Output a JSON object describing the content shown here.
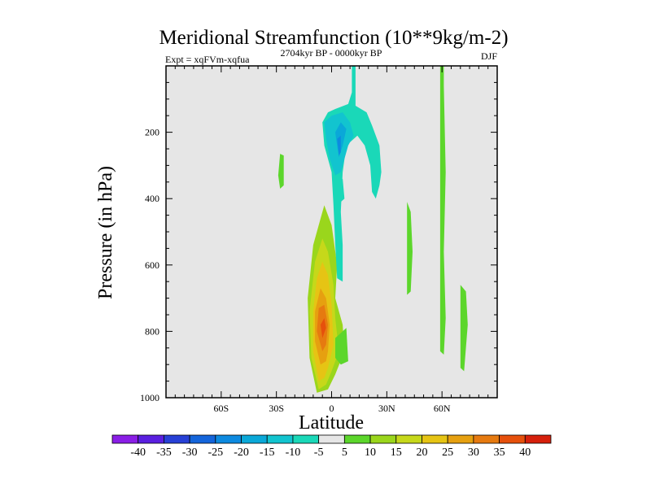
{
  "chart_data": {
    "type": "contour",
    "title": "Meridional Streamfunction (10**9kg/m-2)",
    "subtitle_left": "Expt = xqFVm-xqfua",
    "subtitle_center": "2704kyr BP - 0000kyr BP",
    "subtitle_right": "DJF",
    "xlabel": "Latitude",
    "ylabel": "Pressure (in hPa)",
    "xlim": [
      -90,
      90
    ],
    "ylim": [
      0,
      1000
    ],
    "y_inverted": true,
    "x_ticks": [
      {
        "value": -60,
        "label": "60S"
      },
      {
        "value": -30,
        "label": "30S"
      },
      {
        "value": 0,
        "label": "0"
      },
      {
        "value": 30,
        "label": "30N"
      },
      {
        "value": 60,
        "label": "60N"
      }
    ],
    "y_ticks": [
      {
        "value": 200,
        "label": "200"
      },
      {
        "value": 400,
        "label": "400"
      },
      {
        "value": 600,
        "label": "600"
      },
      {
        "value": 800,
        "label": "800"
      },
      {
        "value": 1000,
        "label": "1000"
      }
    ],
    "background_color": "#e6e6e6",
    "colorbar": {
      "levels": [
        "-40",
        "-35",
        "-30",
        "-25",
        "-20",
        "-15",
        "-10",
        "-5",
        "5",
        "10",
        "15",
        "20",
        "25",
        "30",
        "35",
        "40"
      ],
      "colors": [
        "#8a1ee6",
        "#5a1fe0",
        "#2740d6",
        "#1465db",
        "#0d8ae0",
        "#0aa8d8",
        "#12c4cf",
        "#1ad8b8",
        "#e6e6e6",
        "#5cd62b",
        "#9ad61c",
        "#c6d81a",
        "#e6c414",
        "#e6a010",
        "#e67a10",
        "#e6500c",
        "#d6200c"
      ]
    },
    "regions": [
      {
        "name": "positive-cell-10",
        "color": "#9ad61c",
        "points": [
          [
            -8,
            985
          ],
          [
            -12,
            880
          ],
          [
            -13,
            700
          ],
          [
            -10,
            540
          ],
          [
            -6,
            460
          ],
          [
            -4,
            420
          ],
          [
            0,
            480
          ],
          [
            3,
            600
          ],
          [
            2,
            700
          ],
          [
            6,
            780
          ],
          [
            7,
            860
          ],
          [
            2,
            930
          ],
          [
            -2,
            975
          ]
        ]
      },
      {
        "name": "positive-cell-15",
        "color": "#c6d81a",
        "points": [
          [
            -7,
            975
          ],
          [
            -11,
            880
          ],
          [
            -12,
            740
          ],
          [
            -9,
            590
          ],
          [
            -5,
            520
          ],
          [
            -2,
            560
          ],
          [
            1,
            660
          ],
          [
            2,
            760
          ],
          [
            4,
            860
          ],
          [
            0,
            920
          ],
          [
            -3,
            960
          ]
        ]
      },
      {
        "name": "positive-cell-20",
        "color": "#e6c414",
        "points": [
          [
            -7,
            950
          ],
          [
            -10,
            860
          ],
          [
            -10,
            740
          ],
          [
            -8,
            640
          ],
          [
            -5,
            590
          ],
          [
            -2,
            630
          ],
          [
            0,
            720
          ],
          [
            1,
            840
          ],
          [
            -2,
            910
          ],
          [
            -4,
            940
          ]
        ]
      },
      {
        "name": "positive-cell-25",
        "color": "#e6a010",
        "points": [
          [
            -6,
            900
          ],
          [
            -9,
            830
          ],
          [
            -9,
            740
          ],
          [
            -6,
            670
          ],
          [
            -3,
            700
          ],
          [
            -1,
            780
          ],
          [
            -2,
            860
          ],
          [
            -3,
            890
          ]
        ]
      },
      {
        "name": "positive-cell-30",
        "color": "#e67a10",
        "points": [
          [
            -5,
            860
          ],
          [
            -8,
            800
          ],
          [
            -7,
            730
          ],
          [
            -4,
            720
          ],
          [
            -2,
            780
          ],
          [
            -3,
            840
          ]
        ]
      },
      {
        "name": "positive-cell-35",
        "color": "#e6500c",
        "points": [
          [
            -5,
            820
          ],
          [
            -6,
            780
          ],
          [
            -4,
            760
          ],
          [
            -3,
            790
          ]
        ]
      },
      {
        "name": "positive-edge-5",
        "color": "#5cd62b",
        "points": [
          [
            2,
            820
          ],
          [
            8,
            790
          ],
          [
            9,
            890
          ],
          [
            5,
            900
          ],
          [
            2,
            880
          ]
        ]
      },
      {
        "name": "negative-cell-5",
        "color": "#1ad8b8",
        "points": [
          [
            11,
            0
          ],
          [
            13,
            0
          ],
          [
            13,
            120
          ],
          [
            19,
            140
          ],
          [
            22,
            180
          ],
          [
            26,
            240
          ],
          [
            27,
            320
          ],
          [
            26,
            360
          ],
          [
            24,
            400
          ],
          [
            22,
            380
          ],
          [
            21,
            300
          ],
          [
            18,
            240
          ],
          [
            14,
            210
          ],
          [
            8,
            240
          ],
          [
            6,
            320
          ],
          [
            5,
            440
          ],
          [
            6,
            540
          ],
          [
            6,
            650
          ],
          [
            3,
            640
          ],
          [
            2,
            540
          ],
          [
            1,
            420
          ],
          [
            0,
            320
          ],
          [
            -4,
            240
          ],
          [
            -5,
            170
          ],
          [
            -2,
            140
          ],
          [
            2,
            130
          ],
          [
            9,
            115
          ],
          [
            11,
            80
          ]
        ]
      },
      {
        "name": "negative-cell-10",
        "color": "#12c4cf",
        "points": [
          [
            -4,
            170
          ],
          [
            0,
            150
          ],
          [
            6,
            140
          ],
          [
            10,
            170
          ],
          [
            12,
            210
          ],
          [
            9,
            240
          ],
          [
            7,
            280
          ],
          [
            5,
            320
          ],
          [
            2,
            330
          ],
          [
            -1,
            280
          ],
          [
            -3,
            220
          ]
        ]
      },
      {
        "name": "negative-cell-15",
        "color": "#0aa8d8",
        "points": [
          [
            2,
            200
          ],
          [
            5,
            170
          ],
          [
            8,
            190
          ],
          [
            6,
            240
          ],
          [
            4,
            275
          ],
          [
            3,
            240
          ]
        ]
      },
      {
        "name": "negative-cell-20",
        "color": "#0d8ae0",
        "points": [
          [
            3,
            220
          ],
          [
            5,
            210
          ],
          [
            5,
            260
          ],
          [
            4,
            270
          ]
        ]
      },
      {
        "name": "negative-blob-south",
        "color": "#1ad8b8",
        "points": [
          [
            4,
            350
          ],
          [
            6,
            340
          ],
          [
            7,
            400
          ],
          [
            5,
            410
          ]
        ]
      },
      {
        "name": "positive-blob-30s",
        "color": "#5cd62b",
        "points": [
          [
            -28,
            265
          ],
          [
            -26,
            270
          ],
          [
            -26,
            360
          ],
          [
            -28,
            370
          ],
          [
            -29,
            330
          ]
        ]
      },
      {
        "name": "positive-strip-45n",
        "color": "#5cd62b",
        "points": [
          [
            41,
            410
          ],
          [
            43,
            440
          ],
          [
            44,
            560
          ],
          [
            43,
            680
          ],
          [
            41,
            690
          ],
          [
            41,
            560
          ]
        ]
      },
      {
        "name": "positive-strip-60n",
        "color": "#5cd62b",
        "points": [
          [
            59,
            0
          ],
          [
            61,
            0
          ],
          [
            61,
            60
          ],
          [
            62,
            320
          ],
          [
            61,
            560
          ],
          [
            62,
            760
          ],
          [
            61,
            870
          ],
          [
            59,
            860
          ],
          [
            59,
            560
          ],
          [
            59,
            320
          ],
          [
            59,
            60
          ]
        ]
      },
      {
        "name": "positive-blob-70n",
        "color": "#5cd62b",
        "points": [
          [
            70,
            660
          ],
          [
            73,
            680
          ],
          [
            74,
            780
          ],
          [
            72,
            920
          ],
          [
            70,
            910
          ],
          [
            70,
            800
          ]
        ]
      }
    ]
  }
}
